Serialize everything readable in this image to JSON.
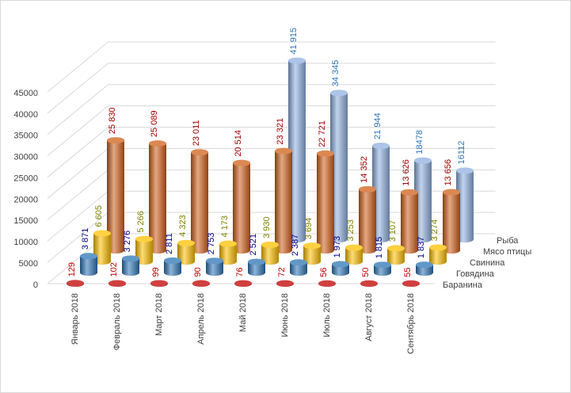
{
  "chart_data": {
    "type": "bar3d",
    "categories": [
      "Январь 2018",
      "Февраль 2018",
      "Март 2018",
      "Апрель 2018",
      "Май 2018",
      "Июнь 2018",
      "Июль 2018",
      "Август 2018",
      "Сентябрь 2018"
    ],
    "ylim": [
      0,
      45000
    ],
    "yticks": [
      0,
      5000,
      10000,
      15000,
      20000,
      25000,
      30000,
      35000,
      40000,
      45000
    ],
    "grid": true,
    "series": [
      {
        "name": "Баранина",
        "color": "#c00000",
        "label_color": "#c00000",
        "values": [
          129,
          102,
          99,
          90,
          76,
          72,
          56,
          50,
          55
        ]
      },
      {
        "name": "Говядина",
        "color": "#2e75b6",
        "label_color": "#00008b",
        "values": [
          3871,
          3276,
          2811,
          2753,
          2521,
          2387,
          1973,
          1815,
          1837
        ],
        "value_labels": [
          "3 871",
          "3 276",
          "2 811",
          "2 753",
          "2 521",
          "2 387",
          "1 973",
          "1 815",
          "1 837"
        ]
      },
      {
        "name": "Свинина",
        "color": "#ffc000",
        "label_color": "#7f7f00",
        "values": [
          6605,
          5266,
          4323,
          4173,
          3930,
          3694,
          3253,
          3107,
          3274
        ],
        "value_labels": [
          "6 605",
          "5 266",
          "4 323",
          "4 173",
          "3 930",
          "3 694",
          "3 253",
          "3 107",
          "3 274"
        ]
      },
      {
        "name": "Мясо птицы",
        "color": "#d0601a",
        "label_color": "#a00000",
        "values": [
          25830,
          25089,
          23011,
          20514,
          23321,
          22721,
          14352,
          13626,
          13656
        ],
        "value_labels": [
          "25 830",
          "25 089",
          "23 011",
          "20 514",
          "23 321",
          "22 721",
          "14 352",
          "13 626",
          "13 656"
        ]
      },
      {
        "name": "Рыба",
        "color": "#8fb0e0",
        "label_color": "#2e75b6",
        "values": [
          null,
          null,
          null,
          null,
          41915,
          34345,
          21944,
          18478,
          16112
        ],
        "value_labels": [
          null,
          null,
          null,
          null,
          "41 915",
          "34 345",
          "21 944",
          "18478",
          "16112"
        ]
      }
    ]
  }
}
